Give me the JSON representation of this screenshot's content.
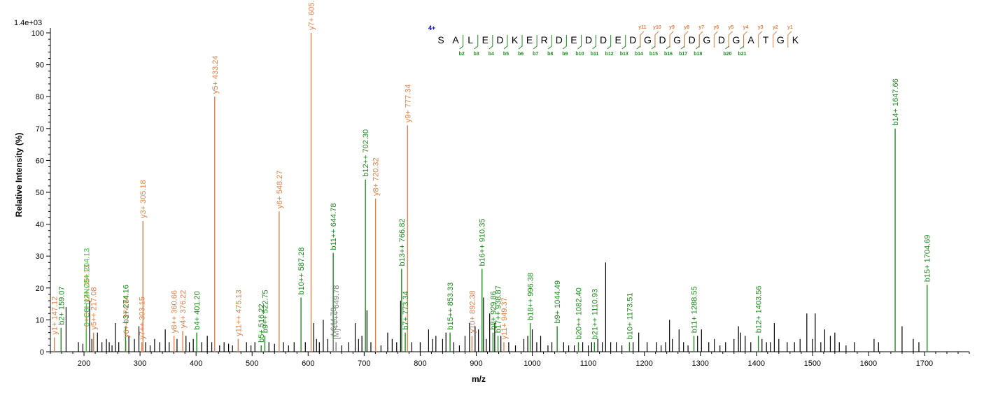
{
  "chart_data": {
    "type": "bar",
    "xlabel": "m/z",
    "ylabel": "Relative   Intensity (%)",
    "y_scale_label": "1.4e+03",
    "xlim": [
      140,
      1780
    ],
    "ylim": [
      0,
      100
    ],
    "x_ticks": [
      100,
      200,
      300,
      400,
      500,
      600,
      700,
      800,
      900,
      1000,
      1100,
      1200,
      1300,
      1400,
      1500,
      1600,
      1700
    ],
    "y_ticks": [
      0,
      10,
      20,
      30,
      40,
      50,
      60,
      70,
      80,
      90,
      100
    ],
    "colors": {
      "b": "#1e8c1e",
      "y": "#e0824a",
      "other": "#000000",
      "marker": "#808080",
      "precursor": "#808080",
      "immonium": "#33cc33",
      "charge": "#0000cc"
    },
    "annotated_peaks": [
      {
        "mz": 147.12,
        "rel": 4.5,
        "ion": "y",
        "label": "y1+ 147.12"
      },
      {
        "mz": 159.07,
        "rel": 7.5,
        "ion": "b",
        "label": "b2+ 159.07"
      },
      {
        "mz": 204.13,
        "rel": 14.5,
        "ion": "y",
        "label": "y2+ 204.13"
      },
      {
        "mz": 204.13,
        "rel": 7,
        "ion": "immonium",
        "label": "0+C8H14NO5+ 204.13"
      },
      {
        "mz": 217.08,
        "rel": 6,
        "ion": "y",
        "label": "y5++ 217.08"
      },
      {
        "mz": 274.64,
        "rel": 3.5,
        "ion": "y",
        "label": "y6++ 274.64"
      },
      {
        "mz": 274.16,
        "rel": 8,
        "ion": "b",
        "label": "b3+ 274.16"
      },
      {
        "mz": 303.15,
        "rel": 3,
        "ion": "y",
        "label": "y7++ 303.15"
      },
      {
        "mz": 305.18,
        "rel": 41,
        "ion": "y",
        "label": "y3+ 305.18"
      },
      {
        "mz": 360.66,
        "rel": 5,
        "ion": "y",
        "label": "y8++ 360.66"
      },
      {
        "mz": 376.22,
        "rel": 6.5,
        "ion": "y",
        "label": "y4+ 376.22"
      },
      {
        "mz": 401.2,
        "rel": 6,
        "ion": "b",
        "label": "b4+ 401.20"
      },
      {
        "mz": 433.24,
        "rel": 80,
        "ion": "y",
        "label": "y5+ 433.24"
      },
      {
        "mz": 475.13,
        "rel": 4,
        "ion": "y",
        "label": "y11++ 475.13"
      },
      {
        "mz": 516.22,
        "rel": 2,
        "ion": "b",
        "label": "b5+ 516.22"
      },
      {
        "mz": 522.75,
        "rel": 5,
        "ion": "b",
        "label": "b9++ 522.75"
      },
      {
        "mz": 548.27,
        "rel": 44,
        "ion": "y",
        "label": "y6+ 548.27"
      },
      {
        "mz": 587.28,
        "rel": 17,
        "ion": "b",
        "label": "b10++ 587.28"
      },
      {
        "mz": 605.29,
        "rel": 100,
        "ion": "y",
        "label": "y7+ 605.29"
      },
      {
        "mz": 644.78,
        "rel": 31,
        "ion": "b",
        "label": "b11++ 644.78"
      },
      {
        "mz": 644.78,
        "rel": 4,
        "ion": "marker",
        "label": "* 644.78"
      },
      {
        "mz": 649.78,
        "rel": 3,
        "ion": "precursor",
        "label": "[M]++++ 649.78"
      },
      {
        "mz": 702.3,
        "rel": 54,
        "ion": "b",
        "label": "b12++ 702.30"
      },
      {
        "mz": 720.32,
        "rel": 48,
        "ion": "y",
        "label": "y8+ 720.32"
      },
      {
        "mz": 766.82,
        "rel": 26,
        "ion": "b",
        "label": "b13++ 766.82"
      },
      {
        "mz": 773.34,
        "rel": 6,
        "ion": "b",
        "label": "b7+ 773.34"
      },
      {
        "mz": 777.34,
        "rel": 71,
        "ion": "y",
        "label": "y9+ 777.34"
      },
      {
        "mz": 853.33,
        "rel": 6,
        "ion": "b",
        "label": "b15++ 853.33"
      },
      {
        "mz": 892.38,
        "rel": 5,
        "ion": "y",
        "label": "y10+ 892.38"
      },
      {
        "mz": 910.35,
        "rel": 26,
        "ion": "b",
        "label": "b16++ 910.35"
      },
      {
        "mz": 929.86,
        "rel": 6,
        "ion": "b",
        "label": "b8+ 929.86"
      },
      {
        "mz": 938.87,
        "rel": 5,
        "ion": "b",
        "label": "b17++ 938.87"
      },
      {
        "mz": 949.37,
        "rel": 3,
        "ion": "y",
        "label": "y11+ 949.37"
      },
      {
        "mz": 996.38,
        "rel": 9,
        "ion": "b",
        "label": "b18++ 996.38"
      },
      {
        "mz": 1044.49,
        "rel": 8,
        "ion": "b",
        "label": "b9+ 1044.49"
      },
      {
        "mz": 1082.4,
        "rel": 3,
        "ion": "b",
        "label": "b20++ 1082.40"
      },
      {
        "mz": 1110.93,
        "rel": 3,
        "ion": "b",
        "label": "b21++ 1110.93"
      },
      {
        "mz": 1173.51,
        "rel": 3,
        "ion": "b",
        "label": "b10+ 1173.51"
      },
      {
        "mz": 1288.55,
        "rel": 5,
        "ion": "b",
        "label": "b11+ 1288.55"
      },
      {
        "mz": 1403.56,
        "rel": 5,
        "ion": "b",
        "label": "b12+ 1403.56"
      },
      {
        "mz": 1647.66,
        "rel": 70,
        "ion": "b",
        "label": "b14+ 1647.66"
      },
      {
        "mz": 1704.69,
        "rel": 21,
        "ion": "b",
        "label": "b15+ 1704.69"
      }
    ],
    "unannotated_peaks": [
      [
        168,
        14
      ],
      [
        190,
        3
      ],
      [
        198,
        2.5
      ],
      [
        210,
        16
      ],
      [
        214,
        4
      ],
      [
        224,
        6
      ],
      [
        232,
        3
      ],
      [
        240,
        4
      ],
      [
        245,
        3
      ],
      [
        250,
        2
      ],
      [
        256,
        9
      ],
      [
        262,
        3
      ],
      [
        280,
        5
      ],
      [
        290,
        4
      ],
      [
        298,
        8
      ],
      [
        310,
        3
      ],
      [
        318,
        2
      ],
      [
        326,
        4
      ],
      [
        335,
        3
      ],
      [
        345,
        7
      ],
      [
        352,
        3
      ],
      [
        366,
        4
      ],
      [
        382,
        5
      ],
      [
        388,
        3
      ],
      [
        395,
        4
      ],
      [
        410,
        3
      ],
      [
        420,
        5
      ],
      [
        428,
        3
      ],
      [
        442,
        2
      ],
      [
        450,
        3
      ],
      [
        458,
        2.5
      ],
      [
        465,
        2
      ],
      [
        490,
        3
      ],
      [
        498,
        2
      ],
      [
        505,
        3
      ],
      [
        530,
        3
      ],
      [
        540,
        2.5
      ],
      [
        556,
        3
      ],
      [
        565,
        2
      ],
      [
        575,
        3
      ],
      [
        595,
        3
      ],
      [
        610,
        9
      ],
      [
        615,
        4
      ],
      [
        620,
        3
      ],
      [
        627,
        10
      ],
      [
        635,
        4
      ],
      [
        660,
        2
      ],
      [
        672,
        3
      ],
      [
        684,
        9
      ],
      [
        690,
        4
      ],
      [
        696,
        5
      ],
      [
        705,
        13
      ],
      [
        712,
        3
      ],
      [
        730,
        2
      ],
      [
        742,
        6
      ],
      [
        750,
        4
      ],
      [
        758,
        3
      ],
      [
        765,
        16
      ],
      [
        785,
        3
      ],
      [
        800,
        3
      ],
      [
        815,
        7
      ],
      [
        822,
        4
      ],
      [
        828,
        5
      ],
      [
        840,
        4
      ],
      [
        846,
        6
      ],
      [
        860,
        3
      ],
      [
        870,
        2
      ],
      [
        880,
        5
      ],
      [
        888,
        9
      ],
      [
        898,
        8
      ],
      [
        904,
        7
      ],
      [
        913,
        17
      ],
      [
        918,
        4
      ],
      [
        924,
        12
      ],
      [
        933,
        9
      ],
      [
        944,
        5
      ],
      [
        958,
        3
      ],
      [
        970,
        2
      ],
      [
        985,
        4
      ],
      [
        992,
        5
      ],
      [
        1000,
        7
      ],
      [
        1008,
        3
      ],
      [
        1015,
        5
      ],
      [
        1028,
        2
      ],
      [
        1035,
        3
      ],
      [
        1056,
        3
      ],
      [
        1065,
        2
      ],
      [
        1075,
        2
      ],
      [
        1090,
        3
      ],
      [
        1100,
        2
      ],
      [
        1106,
        3
      ],
      [
        1117,
        4
      ],
      [
        1125,
        3
      ],
      [
        1131,
        28
      ],
      [
        1140,
        3
      ],
      [
        1150,
        3
      ],
      [
        1160,
        2
      ],
      [
        1180,
        3
      ],
      [
        1190,
        6
      ],
      [
        1205,
        3
      ],
      [
        1222,
        3
      ],
      [
        1230,
        2
      ],
      [
        1238,
        3
      ],
      [
        1245,
        10
      ],
      [
        1250,
        4
      ],
      [
        1262,
        7
      ],
      [
        1270,
        3
      ],
      [
        1278,
        2
      ],
      [
        1295,
        5
      ],
      [
        1302,
        7
      ],
      [
        1315,
        3
      ],
      [
        1325,
        4
      ],
      [
        1335,
        2
      ],
      [
        1345,
        3
      ],
      [
        1360,
        4
      ],
      [
        1368,
        8
      ],
      [
        1372,
        6
      ],
      [
        1380,
        5
      ],
      [
        1390,
        3
      ],
      [
        1410,
        4
      ],
      [
        1418,
        3
      ],
      [
        1425,
        3
      ],
      [
        1432,
        9
      ],
      [
        1440,
        4
      ],
      [
        1455,
        3
      ],
      [
        1468,
        3
      ],
      [
        1478,
        4
      ],
      [
        1490,
        12
      ],
      [
        1500,
        4
      ],
      [
        1505,
        12
      ],
      [
        1515,
        3
      ],
      [
        1522,
        7
      ],
      [
        1532,
        5
      ],
      [
        1540,
        6
      ],
      [
        1548,
        3
      ],
      [
        1560,
        2
      ],
      [
        1575,
        3
      ],
      [
        1610,
        4
      ],
      [
        1618,
        3
      ],
      [
        1660,
        8
      ],
      [
        1680,
        4
      ],
      [
        1690,
        3
      ]
    ],
    "sequence": {
      "charge": "4+",
      "residues": [
        "S",
        "A",
        "L",
        "E",
        "D",
        "K",
        "E",
        "R",
        "D",
        "E",
        "D",
        "D",
        "E",
        "D",
        "G",
        "D",
        "G",
        "D",
        "G",
        "D",
        "G",
        "A",
        "T",
        "G",
        "K"
      ],
      "b_ions": [
        "b2",
        "b3",
        "b4",
        "b5",
        "b6",
        "b7",
        "b8",
        "b9",
        "b10",
        "b11",
        "b12",
        "b13",
        "b14",
        "b15",
        "b16",
        "b17",
        "b18",
        "b20",
        "b21"
      ],
      "b_positions": [
        2,
        3,
        4,
        5,
        6,
        7,
        8,
        9,
        10,
        11,
        12,
        13,
        14,
        15,
        16,
        17,
        18,
        20,
        21
      ],
      "y_ions": [
        "y11",
        "y10",
        "y9",
        "y8",
        "y7",
        "y6",
        "y5",
        "y4",
        "y3",
        "y2",
        "y1"
      ],
      "y_positions": [
        11,
        10,
        9,
        8,
        7,
        6,
        5,
        4,
        3,
        2,
        1
      ]
    }
  }
}
